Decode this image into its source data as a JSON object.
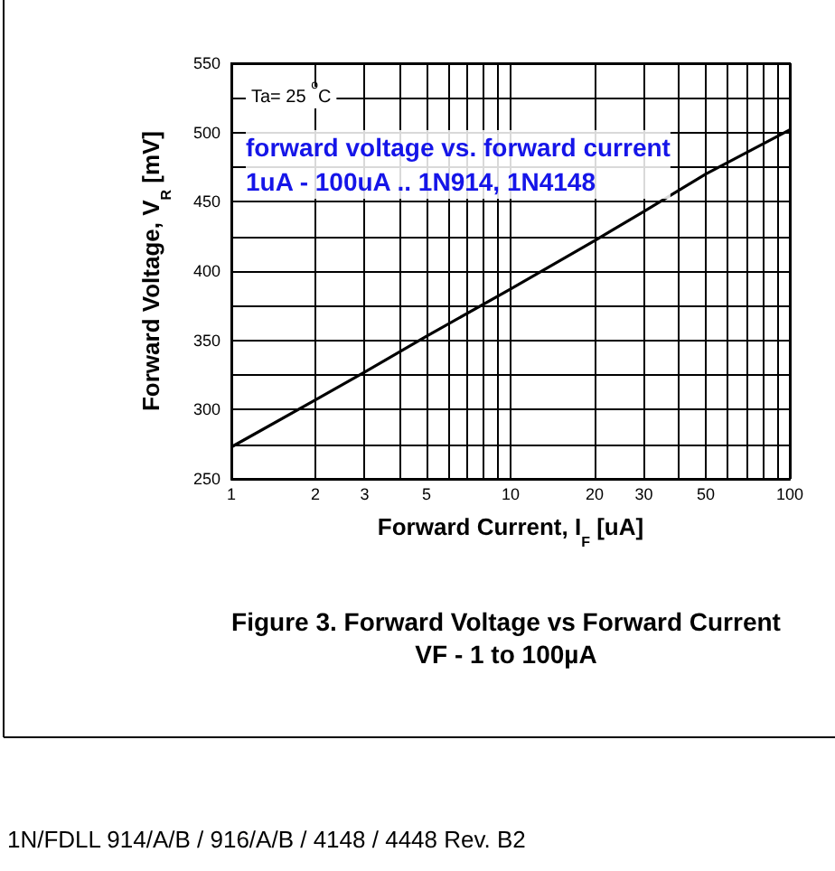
{
  "chart_data": {
    "type": "line",
    "title": "Figure 3. Forward Voltage vs Forward Current",
    "subtitle": "VF - 1 to 100µA",
    "xlabel": "Forward Current, I$_{F}$ [uA]",
    "ylabel": "Forward Voltage, V$_{R}$ [mV]",
    "annotations": [
      "Ta= 25 $^{o}$C",
      "forward voltage vs. forward current\n1uA - 100uA .. 1N914, 1N4148",
      "1N/FDLL 914/A/B / 916/A/B / 4148 / 4448 Rev. B2"
    ],
    "series": [
      {
        "color": "#000000",
        "x": [
          1,
          2,
          3,
          5,
          10,
          20,
          30,
          50,
          100
        ],
        "values": [
          273,
          307,
          327,
          353,
          387,
          422,
          443,
          470,
          502
        ]
      }
    ],
    "log": "x",
    "xlim": [
      1,
      100
    ],
    "xticks": [
      1,
      2,
      3,
      {
        "value": 4,
        "label": null
      },
      5,
      {
        "value": 6,
        "label": null
      },
      {
        "value": 7,
        "label": null
      },
      {
        "value": 8,
        "label": null
      },
      {
        "value": 9,
        "label": null
      },
      10,
      20,
      30,
      {
        "value": 40,
        "label": null
      },
      50,
      {
        "value": 60,
        "label": null
      },
      {
        "value": 70,
        "label": null
      },
      {
        "value": 80,
        "label": null
      },
      {
        "value": 90,
        "label": null
      },
      100
    ],
    "ylim": [
      250,
      550
    ],
    "yticks": [
      250,
      {
        "value": 275,
        "label": null
      },
      300,
      {
        "value": 325,
        "label": null
      },
      350,
      {
        "value": 375,
        "label": null
      },
      400,
      {
        "value": 425,
        "label": null
      },
      450,
      {
        "value": 475,
        "label": null
      },
      500,
      {
        "value": 525,
        "label": null
      },
      550
    ],
    "grid": true,
    "marker": "none",
    "line_style": "solid"
  }
}
